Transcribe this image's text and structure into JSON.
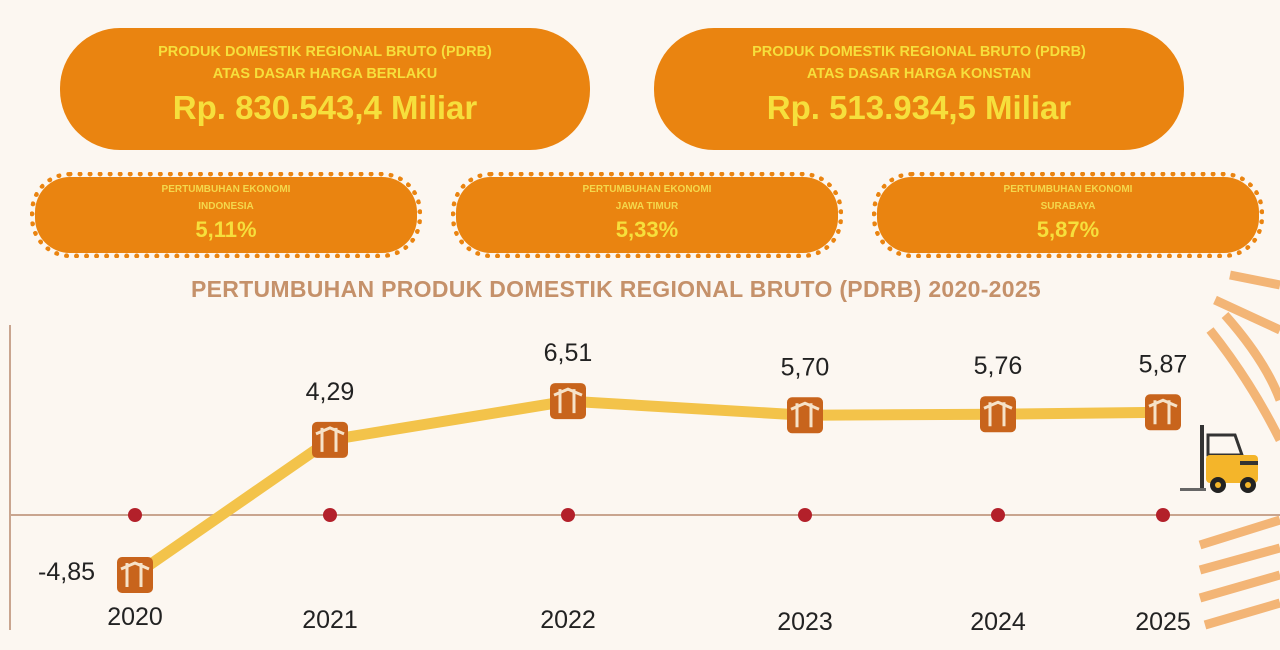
{
  "cards": [
    {
      "line1": "PRODUK DOMESTIK REGIONAL BRUTO (PDRB)",
      "line2": "ATAS DASAR HARGA BERLAKU",
      "value": "Rp. 830.543,4 Miliar"
    },
    {
      "line1": "PRODUK DOMESTIK REGIONAL BRUTO (PDRB)",
      "line2": "ATAS DASAR HARGA KONSTAN",
      "value": "Rp. 513.934,5 Miliar"
    }
  ],
  "growth": [
    {
      "line1": "PERTUMBUHAN EKONOMI",
      "line2": "INDONESIA",
      "value": "5,11%"
    },
    {
      "line1": "PERTUMBUHAN EKONOMI",
      "line2": "JAWA TIMUR",
      "value": "5,33%"
    },
    {
      "line1": "PERTUMBUHAN EKONOMI",
      "line2": "SURABAYA",
      "value": "5,87%"
    }
  ],
  "colors": {
    "background": "#fcf7f1",
    "card": "#ea8410",
    "card_text": "#f6df3c",
    "line": "#f3c34a",
    "box": "#c8641c",
    "dot": "#b3202a",
    "axis": "#c9a58f",
    "title": "#c5916a",
    "negative_label": "#e0962a"
  },
  "chart_data": {
    "type": "line",
    "title": "PERTUMBUHAN PRODUK DOMESTIK REGIONAL BRUTO (PDRB) 2020-2025",
    "categories": [
      "2020",
      "2021",
      "2022",
      "2023",
      "2024",
      "2025"
    ],
    "values": [
      -4.85,
      4.29,
      6.51,
      5.7,
      5.76,
      5.87
    ],
    "value_labels": [
      "-4,85",
      "4,29",
      "6,51",
      "5,70",
      "5,76",
      "5,87"
    ],
    "marker_icon": "box-icon",
    "decoration_icon": "forklift-icon",
    "grid": false
  }
}
